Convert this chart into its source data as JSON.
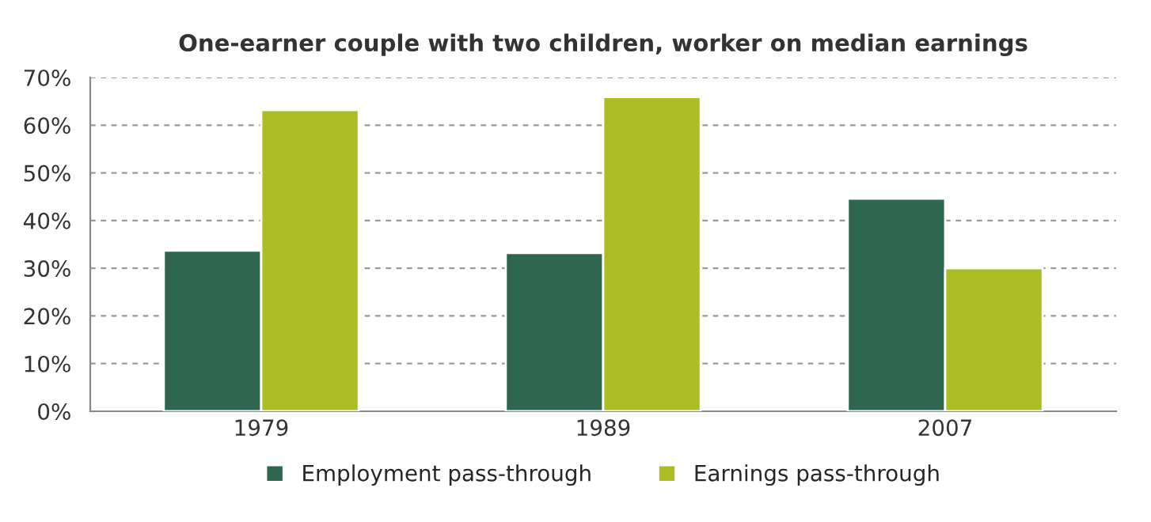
{
  "chart_data": {
    "type": "bar",
    "title": "One-earner couple with two children, worker on median earnings",
    "categories": [
      "1979",
      "1989",
      "2007"
    ],
    "series": [
      {
        "name": "Employment pass-through",
        "color": "#2e6650",
        "values": [
          33.7,
          33.2,
          44.6
        ]
      },
      {
        "name": "Earnings pass-through",
        "color": "#acbc24",
        "values": [
          63.2,
          65.9,
          30.0
        ]
      }
    ],
    "ylim": [
      0,
      70
    ],
    "yticks": [
      {
        "value": 0,
        "label": "0%"
      },
      {
        "value": 10,
        "label": "10%"
      },
      {
        "value": 20,
        "label": "20%"
      },
      {
        "value": 30,
        "label": "30%"
      },
      {
        "value": 40,
        "label": "40%"
      },
      {
        "value": 50,
        "label": "50%"
      },
      {
        "value": 60,
        "label": "60%"
      },
      {
        "value": 70,
        "label": "70%"
      }
    ],
    "grid": "y",
    "legend": "bottom"
  }
}
